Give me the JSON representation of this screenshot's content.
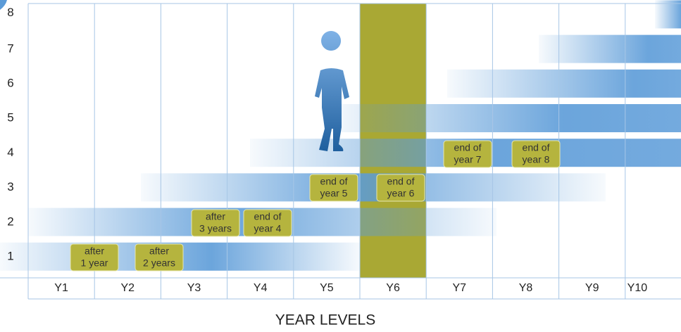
{
  "y_levels": [
    "1",
    "2",
    "3",
    "4",
    "5",
    "6",
    "7",
    "8"
  ],
  "year_levels": [
    "Y1",
    "Y2",
    "Y3",
    "Y4",
    "Y5",
    "Y6",
    "Y7",
    "Y8",
    "Y9",
    "Y10"
  ],
  "checkpoints": [
    [
      "after",
      "1 year"
    ],
    [
      "after",
      "2 years"
    ],
    [
      "after",
      "3 years"
    ],
    [
      "end of",
      "year 4"
    ],
    [
      "end of",
      "year 5"
    ],
    [
      "end of",
      "year 6"
    ],
    [
      "end of",
      "year 7"
    ],
    [
      "end of",
      "year 8"
    ]
  ],
  "axis_title": "YEAR LEVELS"
}
